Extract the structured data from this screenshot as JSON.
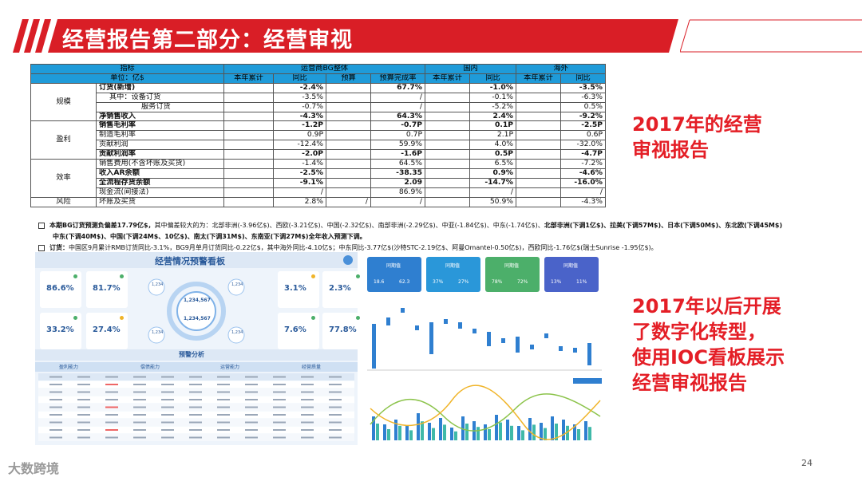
{
  "header": {
    "title": "经营报告第二部分：经营审视"
  },
  "table": {
    "head1": [
      "指标",
      "运营商BG整体",
      "国内",
      "海外"
    ],
    "head2": [
      "单位：亿$",
      "本年累计",
      "同比",
      "预算",
      "预算完成率",
      "本年累计",
      "同比",
      "本年累计",
      "同比"
    ],
    "rows": [
      {
        "cat": "规模",
        "label": "订货(新增)",
        "b": true,
        "v": [
          "",
          "-2.4%",
          "",
          "67.7%",
          "",
          "-1.0%",
          "",
          "-3.5%"
        ]
      },
      {
        "label": "其中：设备订货",
        "indent": 1,
        "v": [
          "",
          "-3.5%",
          "",
          "/",
          "",
          "-0.1%",
          "",
          "-6.3%"
        ]
      },
      {
        "label": "服务订货",
        "indent": 2,
        "v": [
          "",
          "-0.7%",
          "",
          "/",
          "",
          "-5.2%",
          "",
          "0.5%"
        ]
      },
      {
        "label": "净销售收入",
        "b": true,
        "v": [
          "",
          "-4.3%",
          "",
          "64.3%",
          "",
          "2.4%",
          "",
          "-9.2%"
        ]
      },
      {
        "cat": "盈利",
        "label": "销售毛利率",
        "b": true,
        "v": [
          "",
          "-1.2P",
          "",
          "-0.7P",
          "",
          "0.1P",
          "",
          "-2.5P"
        ]
      },
      {
        "label": "制造毛利率",
        "v": [
          "",
          "0.9P",
          "",
          "0.7P",
          "",
          "2.1P",
          "",
          "0.6P"
        ]
      },
      {
        "label": "贡献利润",
        "v": [
          "",
          "-12.4%",
          "",
          "59.9%",
          "",
          "4.0%",
          "",
          "-32.0%"
        ]
      },
      {
        "label": "贡献利润率",
        "b": true,
        "v": [
          "",
          "-2.0P",
          "",
          "-1.6P",
          "",
          "0.5P",
          "",
          "-4.7P"
        ]
      },
      {
        "cat": "效率",
        "label": "销售费用(不含坏账及买货)",
        "v": [
          "",
          "-1.4%",
          "",
          "64.5%",
          "",
          "6.5%",
          "",
          "-7.2%"
        ]
      },
      {
        "label": "收入AR余额",
        "b": true,
        "v": [
          "",
          "-2.5%",
          "",
          "-38.35",
          "",
          "0.9%",
          "",
          "-4.6%"
        ]
      },
      {
        "label": "全流程存货余额",
        "b": true,
        "v": [
          "",
          "-9.1%",
          "",
          "2.09",
          "",
          "-14.7%",
          "",
          "-16.0%"
        ]
      },
      {
        "label": "现金流(间接法)",
        "v": [
          "",
          "/",
          "",
          "86.9%",
          "",
          "/",
          "",
          "/"
        ]
      },
      {
        "cat": "风险",
        "label": "坏账及买货",
        "v": [
          "",
          "2.8%",
          "/",
          "/",
          "",
          "50.9%",
          "",
          "-4.3%"
        ]
      }
    ]
  },
  "notes": {
    "n1_bold": "本期BG订货预测负偏差17.79亿$，",
    "n1": "其中偏差较大的为：北部非洲(-3.96亿$)、西欧(-3.21亿$)、中国(-2.32亿$)、南部非洲(-2.29亿$)、中亚(-1.84亿$)、中东(-1.74亿$)、",
    "n1_tail": "北部非洲(下调1亿$)、拉美(下调57M$)、日本(下调50M$)、东北欧(下调45M$)",
    "n2": "中东(下调40M$)、中国(下调24M$、10亿$)、南太(下调31M$)、东南亚(下调27M$)全年收入预测下调。",
    "n3_bold": "订货：",
    "n3": "中国区9月累计RMB订货同比-3.1%，BG9月单月订货同比-0.22亿$，其中海外同比-4.10亿$；中东同比-3.77亿$(沙特STC-2.19亿$、阿曼Omantel-0.50亿$)，西欧同比-1.76亿$(瑞士Sunrise -1.95亿$)。"
  },
  "right": {
    "text1": [
      "2017年的经营",
      "审视报告"
    ],
    "text2": [
      "2017年以后开展",
      "了数字化转型，",
      "使用IOC看板展示",
      "经营审视报告"
    ]
  },
  "dash": {
    "title": "经营情况预警看板",
    "cards": [
      "86.6%",
      "81.7%",
      "3.1%",
      "2.3%",
      "33.2%",
      "27.4%",
      "7.6%",
      "77.8%"
    ],
    "center": [
      "1,234,567",
      "1,234,567",
      "1,234",
      "1,234",
      "1,234",
      "1,234"
    ],
    "section": "预警分析",
    "tabs": [
      "盈利能力",
      "偿债能力",
      "运营能力",
      "经营质量"
    ]
  },
  "dash2": {
    "tiles": [
      "同期值",
      "同期值",
      "同期值",
      "同期值"
    ],
    "tile_vals": [
      [
        "18.6",
        "62.3"
      ],
      [
        "37%",
        "27%"
      ],
      [
        "78%",
        "72%"
      ],
      [
        "13%",
        "11%"
      ]
    ],
    "tile_colors": [
      "#2f7fd0",
      "#2a97d9",
      "#4caf6a",
      "#4a63c9"
    ]
  },
  "footer": {
    "page": "24",
    "logo": "大数跨境"
  }
}
